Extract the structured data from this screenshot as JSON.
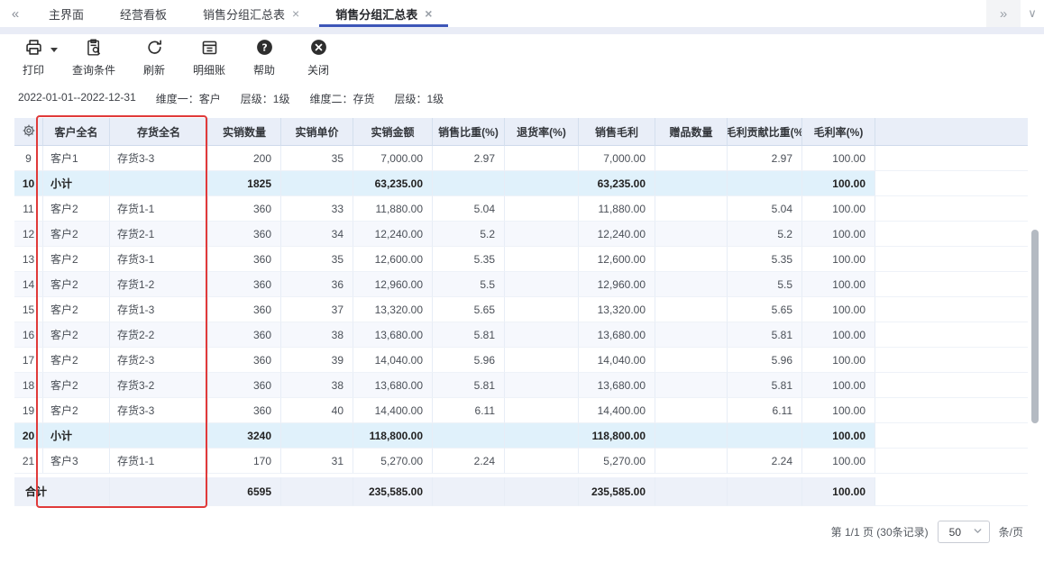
{
  "tabbar": {
    "collapse_icon": "«",
    "expand_icon": "»",
    "overflow_icon": "∨",
    "close_glyph": "×",
    "tabs": [
      {
        "label": "主界面",
        "closable": false,
        "active": false
      },
      {
        "label": "经营看板",
        "closable": false,
        "active": false
      },
      {
        "label": "销售分组汇总表",
        "closable": true,
        "active": false
      },
      {
        "label": "销售分组汇总表",
        "closable": true,
        "active": true
      }
    ]
  },
  "toolbar": {
    "buttons": [
      {
        "id": "print",
        "label": "打印",
        "icon": "printer-icon",
        "has_dropdown": true
      },
      {
        "id": "query-conditions",
        "label": "查询条件",
        "icon": "clipboard-search-icon",
        "has_dropdown": false
      },
      {
        "id": "refresh",
        "label": "刷新",
        "icon": "refresh-icon",
        "has_dropdown": false
      },
      {
        "id": "detail-ledger",
        "label": "明细账",
        "icon": "ledger-icon",
        "has_dropdown": false
      },
      {
        "id": "help",
        "label": "帮助",
        "icon": "help-circle-icon",
        "has_dropdown": false
      },
      {
        "id": "close",
        "label": "关闭",
        "icon": "close-circle-icon",
        "has_dropdown": false
      }
    ]
  },
  "filters": {
    "segments": [
      "2022-01-01--2022-12-31",
      "维度一：客户",
      "层级：1级",
      "维度二：存货",
      "层级：1级"
    ]
  },
  "table": {
    "columns": [
      {
        "key": "customer",
        "label": "客户全名"
      },
      {
        "key": "item",
        "label": "存货全名"
      },
      {
        "key": "qty",
        "label": "实销数量"
      },
      {
        "key": "price",
        "label": "实销单价"
      },
      {
        "key": "amount",
        "label": "实销金额"
      },
      {
        "key": "sales_pct",
        "label": "销售比重(%)"
      },
      {
        "key": "return_pct",
        "label": "退货率(%)"
      },
      {
        "key": "profit",
        "label": "销售毛利"
      },
      {
        "key": "gift_qty",
        "label": "赠品数量"
      },
      {
        "key": "profit_contrib_pct",
        "label": "毛利贡献比重(%"
      },
      {
        "key": "margin_pct",
        "label": "毛利率(%)"
      }
    ],
    "rows": [
      {
        "no": "9",
        "type": "data",
        "customer": "客户1",
        "item": "存货3-3",
        "qty": "200",
        "price": "35",
        "amount": "7,000.00",
        "sales_pct": "2.97",
        "return_pct": "",
        "profit": "7,000.00",
        "gift_qty": "",
        "profit_contrib_pct": "2.97",
        "margin_pct": "100.00"
      },
      {
        "no": "10",
        "type": "subtotal",
        "customer": "小计",
        "item": "",
        "qty": "1825",
        "price": "",
        "amount": "63,235.00",
        "sales_pct": "",
        "return_pct": "",
        "profit": "63,235.00",
        "gift_qty": "",
        "profit_contrib_pct": "",
        "margin_pct": "100.00"
      },
      {
        "no": "11",
        "type": "data",
        "customer": "客户2",
        "item": "存货1-1",
        "qty": "360",
        "price": "33",
        "amount": "11,880.00",
        "sales_pct": "5.04",
        "return_pct": "",
        "profit": "11,880.00",
        "gift_qty": "",
        "profit_contrib_pct": "5.04",
        "margin_pct": "100.00"
      },
      {
        "no": "12",
        "type": "data",
        "customer": "客户2",
        "item": "存货2-1",
        "qty": "360",
        "price": "34",
        "amount": "12,240.00",
        "sales_pct": "5.2",
        "return_pct": "",
        "profit": "12,240.00",
        "gift_qty": "",
        "profit_contrib_pct": "5.2",
        "margin_pct": "100.00"
      },
      {
        "no": "13",
        "type": "data",
        "customer": "客户2",
        "item": "存货3-1",
        "qty": "360",
        "price": "35",
        "amount": "12,600.00",
        "sales_pct": "5.35",
        "return_pct": "",
        "profit": "12,600.00",
        "gift_qty": "",
        "profit_contrib_pct": "5.35",
        "margin_pct": "100.00"
      },
      {
        "no": "14",
        "type": "data",
        "customer": "客户2",
        "item": "存货1-2",
        "qty": "360",
        "price": "36",
        "amount": "12,960.00",
        "sales_pct": "5.5",
        "return_pct": "",
        "profit": "12,960.00",
        "gift_qty": "",
        "profit_contrib_pct": "5.5",
        "margin_pct": "100.00"
      },
      {
        "no": "15",
        "type": "data",
        "customer": "客户2",
        "item": "存货1-3",
        "qty": "360",
        "price": "37",
        "amount": "13,320.00",
        "sales_pct": "5.65",
        "return_pct": "",
        "profit": "13,320.00",
        "gift_qty": "",
        "profit_contrib_pct": "5.65",
        "margin_pct": "100.00"
      },
      {
        "no": "16",
        "type": "data",
        "customer": "客户2",
        "item": "存货2-2",
        "qty": "360",
        "price": "38",
        "amount": "13,680.00",
        "sales_pct": "5.81",
        "return_pct": "",
        "profit": "13,680.00",
        "gift_qty": "",
        "profit_contrib_pct": "5.81",
        "margin_pct": "100.00"
      },
      {
        "no": "17",
        "type": "data",
        "customer": "客户2",
        "item": "存货2-3",
        "qty": "360",
        "price": "39",
        "amount": "14,040.00",
        "sales_pct": "5.96",
        "return_pct": "",
        "profit": "14,040.00",
        "gift_qty": "",
        "profit_contrib_pct": "5.96",
        "margin_pct": "100.00"
      },
      {
        "no": "18",
        "type": "data",
        "customer": "客户2",
        "item": "存货3-2",
        "qty": "360",
        "price": "38",
        "amount": "13,680.00",
        "sales_pct": "5.81",
        "return_pct": "",
        "profit": "13,680.00",
        "gift_qty": "",
        "profit_contrib_pct": "5.81",
        "margin_pct": "100.00"
      },
      {
        "no": "19",
        "type": "data",
        "customer": "客户2",
        "item": "存货3-3",
        "qty": "360",
        "price": "40",
        "amount": "14,400.00",
        "sales_pct": "6.11",
        "return_pct": "",
        "profit": "14,400.00",
        "gift_qty": "",
        "profit_contrib_pct": "6.11",
        "margin_pct": "100.00"
      },
      {
        "no": "20",
        "type": "subtotal",
        "customer": "小计",
        "item": "",
        "qty": "3240",
        "price": "",
        "amount": "118,800.00",
        "sales_pct": "",
        "return_pct": "",
        "profit": "118,800.00",
        "gift_qty": "",
        "profit_contrib_pct": "",
        "margin_pct": "100.00"
      },
      {
        "no": "21",
        "type": "data",
        "customer": "客户3",
        "item": "存货1-1",
        "qty": "170",
        "price": "31",
        "amount": "5,270.00",
        "sales_pct": "2.24",
        "return_pct": "",
        "profit": "5,270.00",
        "gift_qty": "",
        "profit_contrib_pct": "2.24",
        "margin_pct": "100.00"
      }
    ],
    "total_row": {
      "no": "合计",
      "type": "total",
      "customer": "",
      "item": "",
      "qty": "6595",
      "price": "",
      "amount": "235,585.00",
      "sales_pct": "",
      "return_pct": "",
      "profit": "235,585.00",
      "gift_qty": "",
      "profit_contrib_pct": "",
      "margin_pct": "100.00"
    }
  },
  "pagination": {
    "page_info": "第 1/1 页 (30条记录)",
    "page_size": "50",
    "per_page_label": "条/页"
  },
  "annotation_color": "#e03a3a"
}
